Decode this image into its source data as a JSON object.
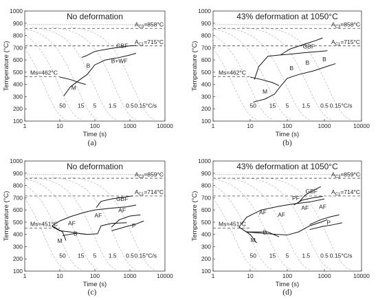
{
  "figure": {
    "x_tick_labels": [
      "1",
      "10",
      "100",
      "1000",
      "10000"
    ],
    "y_tick_labels": [
      "100",
      "200",
      "300",
      "400",
      "500",
      "600",
      "700",
      "800",
      "900",
      "1000"
    ]
  },
  "chart_data": [
    {
      "type": "line",
      "panel": "a",
      "caption": "(a)",
      "title": "No deformation",
      "xlabel": "Time (s)",
      "ylabel": "Temperature (°C)",
      "x_scale": "log",
      "xlim": [
        1,
        10000
      ],
      "ylim": [
        100,
        1000
      ],
      "grid": false,
      "annotations": {
        "ac3": {
          "label": "AC3=858°C",
          "label_main": "A",
          "label_sub": "C3",
          "label_tail": "=858°C",
          "value": 858
        },
        "ac1": {
          "label": "AC1=715°C",
          "label_main": "A",
          "label_sub": "C1",
          "label_tail": "=715°C",
          "value": 715
        },
        "ms": {
          "label": "Ms=462°C",
          "value": 462
        }
      },
      "cooling_rate_labels": [
        "50",
        "15",
        "5",
        "1.5",
        "0.5",
        "0.15°C/s"
      ],
      "phase_labels": [
        "GBF",
        "B",
        "B+WF",
        "M"
      ],
      "series": [
        {
          "name": "GBF",
          "points": [
            [
              42,
              620
            ],
            [
              58,
              635
            ],
            [
              100,
              670
            ],
            [
              300,
              695
            ],
            [
              1000,
              715
            ],
            [
              1500,
              718
            ]
          ]
        },
        {
          "name": "B",
          "points": [
            [
              13,
              305
            ],
            [
              20,
              380
            ],
            [
              40,
              445
            ],
            [
              60,
              480
            ],
            [
              100,
              560
            ],
            [
              200,
              600
            ],
            [
              500,
              620
            ],
            [
              1000,
              640
            ],
            [
              1500,
              655
            ]
          ]
        },
        {
          "name": "M",
          "points": [
            [
              10,
              460
            ],
            [
              20,
              440
            ],
            [
              40,
              410
            ],
            [
              55,
              400
            ]
          ]
        }
      ]
    },
    {
      "type": "line",
      "panel": "b",
      "caption": "(b)",
      "title": "43% deformation at 1050°C",
      "xlabel": "Time (s)",
      "ylabel": "Temperature (°C)",
      "x_scale": "log",
      "xlim": [
        1,
        10000
      ],
      "ylim": [
        100,
        1000
      ],
      "grid": false,
      "annotations": {
        "ac3": {
          "label": "AC3=858°C",
          "label_main": "A",
          "label_sub": "C3",
          "label_tail": "=858°C",
          "value": 858
        },
        "ac1": {
          "label": "AC1=715°C",
          "label_main": "A",
          "label_sub": "C1",
          "label_tail": "=715°C",
          "value": 715
        },
        "ms": {
          "label": "Ms=462°C",
          "value": 462
        }
      },
      "cooling_rate_labels": [
        "50",
        "15",
        "5",
        "1.5",
        "0.5",
        "0.15°C/s"
      ],
      "phase_labels": [
        "GBF",
        "B",
        "B",
        "B",
        "M"
      ],
      "series": [
        {
          "name": "GBF",
          "points": [
            [
              65,
              640
            ],
            [
              120,
              690
            ],
            [
              300,
              730
            ],
            [
              600,
              760
            ],
            [
              900,
              780
            ]
          ]
        },
        {
          "name": "B start",
          "points": [
            [
              13,
              440
            ],
            [
              17,
              545
            ],
            [
              30,
              630
            ],
            [
              60,
              640
            ],
            [
              100,
              645
            ],
            [
              300,
              660
            ],
            [
              800,
              670
            ],
            [
              1200,
              675
            ]
          ]
        },
        {
          "name": "B finish",
          "points": [
            [
              12,
              255
            ],
            [
              25,
              280
            ],
            [
              45,
              320
            ],
            [
              70,
              395
            ],
            [
              100,
              450
            ],
            [
              200,
              480
            ],
            [
              500,
              510
            ],
            [
              1000,
              540
            ],
            [
              2000,
              570
            ]
          ]
        },
        {
          "name": "M",
          "points": [
            [
              10,
              460
            ],
            [
              20,
              440
            ],
            [
              40,
              415
            ],
            [
              60,
              390
            ]
          ]
        }
      ]
    },
    {
      "type": "line",
      "panel": "c",
      "caption": "(c)",
      "title": "No deformation",
      "xlabel": "Time (s)",
      "ylabel": "Temperature (°C)",
      "x_scale": "log",
      "xlim": [
        1,
        10000
      ],
      "ylim": [
        100,
        1000
      ],
      "grid": false,
      "annotations": {
        "ac3": {
          "label": "AC3=859°C",
          "label_main": "A",
          "label_sub": "C3",
          "label_tail": "=859°C",
          "value": 859
        },
        "ac1": {
          "label": "AC1=714°C",
          "label_main": "A",
          "label_sub": "C1",
          "label_tail": "=714°C",
          "value": 714
        },
        "ms": {
          "label": "Ms=451°C",
          "value": 451
        }
      },
      "cooling_rate_labels": [
        "50",
        "15",
        "5",
        "1.5",
        "0.5",
        "0.15°C/s"
      ],
      "phase_labels": [
        "GBF",
        "AF",
        "AF",
        "AF",
        "B",
        "P",
        "M"
      ],
      "series": [
        {
          "name": "GBF",
          "points": [
            [
              110,
              620
            ],
            [
              150,
              670
            ],
            [
              300,
              690
            ],
            [
              700,
              705
            ],
            [
              1200,
              715
            ]
          ]
        },
        {
          "name": "AF start",
          "points": [
            [
              6,
              470
            ],
            [
              10,
              510
            ],
            [
              20,
              545
            ],
            [
              50,
              580
            ],
            [
              100,
              600
            ],
            [
              300,
              615
            ],
            [
              800,
              625
            ],
            [
              1500,
              640
            ]
          ]
        },
        {
          "name": "AF finish",
          "points": [
            [
              6,
              465
            ],
            [
              10,
              430
            ],
            [
              20,
              420
            ],
            [
              40,
              405
            ],
            [
              60,
              400
            ],
            [
              120,
              405
            ],
            [
              150,
              470
            ],
            [
              300,
              490
            ],
            [
              800,
              495
            ]
          ]
        },
        {
          "name": "B",
          "points": [
            [
              12,
              390
            ],
            [
              30,
              410
            ],
            [
              60,
              400
            ]
          ]
        },
        {
          "name": "P",
          "points": [
            [
              300,
              460
            ],
            [
              500,
              520
            ],
            [
              1000,
              550
            ],
            [
              2000,
              560
            ]
          ]
        },
        {
          "name": "P finish",
          "points": [
            [
              300,
              430
            ],
            [
              700,
              460
            ],
            [
              1500,
              485
            ],
            [
              2500,
              510
            ]
          ]
        },
        {
          "name": "M",
          "points": [
            [
              6,
              470
            ],
            [
              12,
              420
            ],
            [
              15,
              350
            ]
          ]
        }
      ]
    },
    {
      "type": "line",
      "panel": "d",
      "caption": "(d)",
      "title": "43% deformation at 1050°C",
      "xlabel": "Time (s)",
      "ylabel": "Temperature (°C)",
      "x_scale": "log",
      "xlim": [
        1,
        10000
      ],
      "ylim": [
        100,
        1000
      ],
      "grid": false,
      "annotations": {
        "ac3": {
          "label": "AC3=859°C",
          "label_main": "A",
          "label_sub": "C3",
          "label_tail": "=859°C",
          "value": 859
        },
        "ac1": {
          "label": "AC1=714°C",
          "label_main": "A",
          "label_sub": "C1",
          "label_tail": "=714°C",
          "value": 714
        },
        "ms": {
          "label": "Ms=451°C",
          "value": 451
        }
      },
      "cooling_rate_labels": [
        "50",
        "15",
        "5",
        "1.5",
        "0.5",
        "0.15°C/s"
      ],
      "phase_labels": [
        "GBF",
        "PF",
        "AF",
        "AF",
        "AF",
        "AF",
        "B",
        "P",
        "M"
      ],
      "series": [
        {
          "name": "GBF",
          "points": [
            [
              200,
              660
            ],
            [
              300,
              720
            ],
            [
              500,
              760
            ],
            [
              800,
              790
            ]
          ]
        },
        {
          "name": "PF",
          "points": [
            [
              150,
              640
            ],
            [
              250,
              680
            ],
            [
              500,
              700
            ],
            [
              900,
              710
            ]
          ]
        },
        {
          "name": "AF start",
          "points": [
            [
              5,
              460
            ],
            [
              8,
              540
            ],
            [
              20,
              600
            ],
            [
              60,
              630
            ],
            [
              150,
              650
            ],
            [
              400,
              665
            ],
            [
              1000,
              690
            ]
          ]
        },
        {
          "name": "AF finish",
          "points": [
            [
              5,
              460
            ],
            [
              8,
              420
            ],
            [
              20,
              410
            ],
            [
              50,
              400
            ],
            [
              100,
              395
            ],
            [
              200,
              420
            ],
            [
              400,
              470
            ],
            [
              800,
              500
            ],
            [
              1200,
              520
            ]
          ]
        },
        {
          "name": "B",
          "points": [
            [
              8,
              420
            ],
            [
              30,
              420
            ],
            [
              60,
              380
            ]
          ]
        },
        {
          "name": "P",
          "points": [
            [
              400,
              480
            ],
            [
              800,
              520
            ],
            [
              1500,
              545
            ],
            [
              2500,
              560
            ]
          ]
        },
        {
          "name": "P finish",
          "points": [
            [
              400,
              440
            ],
            [
              900,
              465
            ],
            [
              1800,
              480
            ],
            [
              3000,
              495
            ]
          ]
        },
        {
          "name": "M",
          "points": [
            [
              5,
              460
            ],
            [
              10,
              400
            ],
            [
              15,
              330
            ]
          ]
        }
      ]
    }
  ]
}
